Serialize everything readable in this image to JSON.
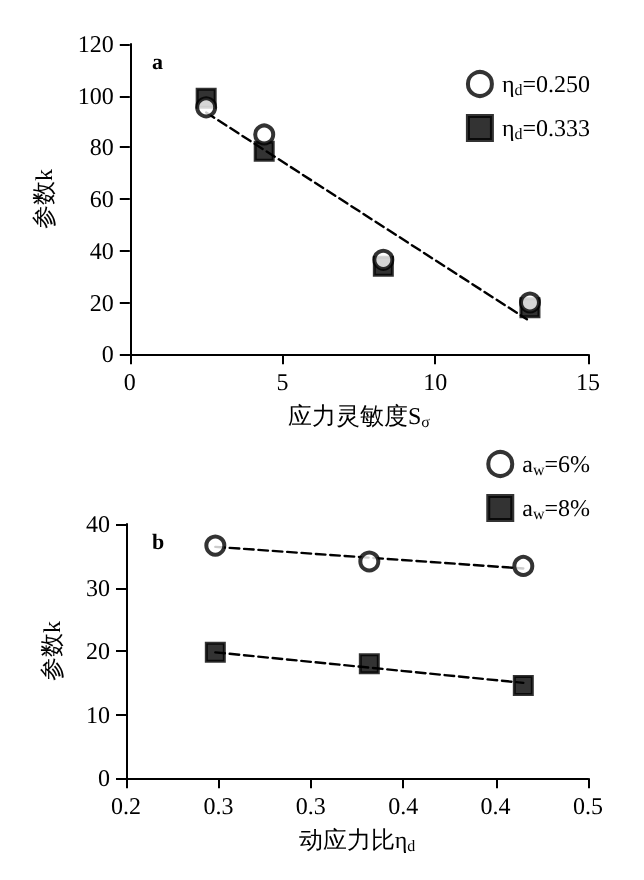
{
  "chart_data": [
    {
      "type": "scatter",
      "xlabel": "应力灵敏度S$_{σ}$",
      "ylabel": "参数k",
      "annotations": [
        "a"
      ],
      "xlim": [
        0,
        15
      ],
      "xticks": [
        0,
        5,
        10,
        15
      ],
      "ylim": [
        0,
        120
      ],
      "yticks": [
        0,
        20,
        40,
        60,
        80,
        100,
        120
      ],
      "grid": false,
      "legend": "top right",
      "series": [
        {
          "name": "η$_{d}$=0.250",
          "color": "#000000",
          "marker": "circle",
          "x": [
            2.5,
            4.4,
            8.3,
            13.1
          ],
          "values": [
            95.5,
            85,
            36.5,
            20
          ]
        },
        {
          "name": "η$_{d}$=0.333",
          "color": "#000000",
          "marker": "square",
          "x": [
            2.5,
            4.4,
            8.3,
            13.1
          ],
          "values": [
            99,
            78.5,
            34,
            18
          ]
        },
        {
          "type": "line",
          "color": "#000000",
          "marker": "none",
          "line_style": "dashed",
          "x": [
            2.5,
            13
          ],
          "values": [
            93.5,
            13.5
          ]
        }
      ]
    },
    {
      "type": "scatter",
      "xlabel": "动应力比η$_{d}$",
      "ylabel": "参数k",
      "annotations": [
        "b"
      ],
      "xlim": [
        0.2,
        0.5
      ],
      "xticks": [
        {
          "value": 0.2,
          "label": "0.2"
        },
        {
          "value": 0.26,
          "label": "0.3"
        },
        {
          "value": 0.32,
          "label": "0.3"
        },
        {
          "value": 0.38,
          "label": "0.4"
        },
        {
          "value": 0.44,
          "label": "0.4"
        },
        {
          "value": 0.5,
          "label": "0.5"
        }
      ],
      "ylim": [
        0,
        40
      ],
      "yticks": [
        0,
        10,
        20,
        30,
        40
      ],
      "grid": false,
      "legend": "top right",
      "series": [
        {
          "name": "a$_{w}$=6%",
          "color": "#000000",
          "marker": "circle",
          "x": [
            0.258,
            0.358,
            0.458
          ],
          "values": [
            36.6,
            34.1,
            33.4
          ]
        },
        {
          "name": "a$_{w}$=8%",
          "color": "#000000",
          "marker": "square",
          "x": [
            0.258,
            0.358,
            0.458
          ],
          "values": [
            19.8,
            18,
            14.6
          ]
        },
        {
          "type": "line",
          "color": "#000000",
          "marker": "none",
          "line_style": "dashed",
          "x": [
            0.258,
            0.458
          ],
          "values": [
            36.4,
            33.0
          ]
        },
        {
          "type": "line",
          "color": "#000000",
          "marker": "none",
          "line_style": "dashed",
          "x": [
            0.258,
            0.458
          ],
          "values": [
            19.8,
            15.0
          ]
        }
      ]
    }
  ]
}
